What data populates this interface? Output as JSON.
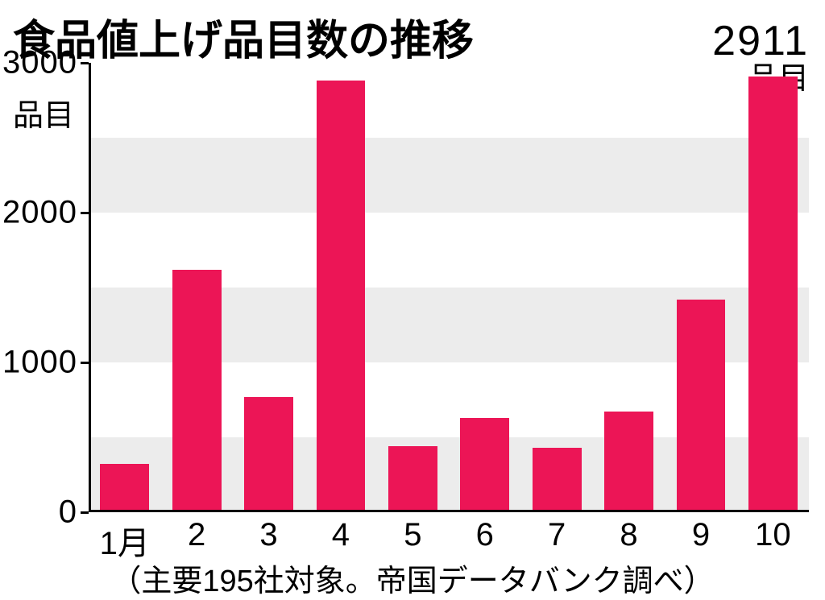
{
  "title": "食品値上げ品目数の推移",
  "highlight": {
    "value": "2911",
    "unit": "品目"
  },
  "yaxis": {
    "unit": "品目",
    "ticks": [
      0,
      1000,
      2000,
      3000
    ],
    "min": 0,
    "max": 3000
  },
  "bands": [
    {
      "from": 0,
      "to": 500
    },
    {
      "from": 1000,
      "to": 1500
    },
    {
      "from": 2000,
      "to": 2500
    }
  ],
  "chart": {
    "type": "bar",
    "bar_color": "#ec1556",
    "band_color": "#ececec",
    "background": "#ffffff",
    "axis_color": "#000000",
    "bar_width_ratio": 0.68,
    "categories": [
      "1月",
      "2",
      "3",
      "4",
      "5",
      "6",
      "7",
      "8",
      "9",
      "10"
    ],
    "values": [
      320,
      1620,
      770,
      2880,
      440,
      630,
      430,
      670,
      1420,
      2911
    ]
  },
  "footnote": "（主要195社対象。帝国データバンク調べ）",
  "fonts": {
    "title_pt": 52,
    "tick_pt": 40,
    "footnote_pt": 38
  }
}
